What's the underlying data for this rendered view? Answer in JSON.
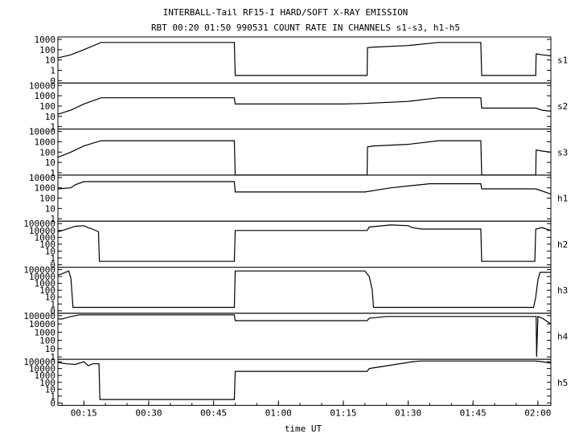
{
  "chart_data": {
    "type": "line",
    "title": "INTERBALL-Tail RF15-I HARD/SOFT X-RAY EMISSION",
    "subtitle": "RBT 00:20 01:50 990531  COUNT RATE IN CHANNELS s1-s3, h1-h5",
    "xlabel": "time UT",
    "x_range_min": [
      9,
      123
    ],
    "x_ticks": [
      {
        "min": 15,
        "label": "00:15"
      },
      {
        "min": 30,
        "label": "00:30"
      },
      {
        "min": 45,
        "label": "00:45"
      },
      {
        "min": 60,
        "label": "01:00"
      },
      {
        "min": 75,
        "label": "01:15"
      },
      {
        "min": 90,
        "label": "01:30"
      },
      {
        "min": 105,
        "label": "01:45"
      },
      {
        "min": 120,
        "label": "02:00"
      }
    ],
    "y_scale": "log",
    "panels": [
      {
        "name": "s1",
        "ymax_exp": 3,
        "ticks": [
          "0",
          "1",
          "10",
          "100",
          "1000"
        ],
        "series": [
          [
            9,
            1.2
          ],
          [
            12,
            1.5
          ],
          [
            15,
            2.0
          ],
          [
            19,
            2.7
          ],
          [
            19.3,
            2.7
          ],
          [
            49.8,
            2.7
          ],
          [
            50,
            -0.5
          ],
          [
            80.5,
            -0.5
          ],
          [
            80.6,
            2.2
          ],
          [
            82,
            2.25
          ],
          [
            90,
            2.4
          ],
          [
            97,
            2.7
          ],
          [
            106.8,
            2.7
          ],
          [
            107,
            -0.5
          ],
          [
            119.5,
            -0.5
          ],
          [
            119.6,
            1.6
          ],
          [
            121,
            1.5
          ],
          [
            123,
            1.4
          ]
        ]
      },
      {
        "name": "s2",
        "ymax_exp": 4,
        "ticks": [
          "1",
          "10",
          "100",
          "1000",
          "10000"
        ],
        "series": [
          [
            9,
            1.2
          ],
          [
            12,
            1.6
          ],
          [
            15,
            2.2
          ],
          [
            19,
            2.8
          ],
          [
            19.3,
            2.8
          ],
          [
            49.8,
            2.8
          ],
          [
            50,
            2.2
          ],
          [
            75,
            2.2
          ],
          [
            80,
            2.25
          ],
          [
            90,
            2.45
          ],
          [
            97,
            2.8
          ],
          [
            106.8,
            2.8
          ],
          [
            107,
            1.8
          ],
          [
            119.5,
            1.8
          ],
          [
            121,
            1.6
          ],
          [
            123,
            1.5
          ]
        ]
      },
      {
        "name": "s3",
        "ymax_exp": 4,
        "ticks": [
          "1",
          "10",
          "100",
          "1000",
          "10000"
        ],
        "series": [
          [
            9,
            1.5
          ],
          [
            12,
            2.0
          ],
          [
            15,
            2.6
          ],
          [
            19,
            3.1
          ],
          [
            19.3,
            3.1
          ],
          [
            49.8,
            3.1
          ],
          [
            50,
            -0.5
          ],
          [
            80.5,
            -0.5
          ],
          [
            80.6,
            2.5
          ],
          [
            82,
            2.6
          ],
          [
            90,
            2.75
          ],
          [
            97,
            3.1
          ],
          [
            106.8,
            3.1
          ],
          [
            107,
            -0.5
          ],
          [
            119.5,
            -0.5
          ],
          [
            119.6,
            2.2
          ],
          [
            121,
            2.1
          ],
          [
            123,
            2.0
          ]
        ]
      },
      {
        "name": "h1",
        "ymax_exp": 4,
        "ticks": [
          "1",
          "10",
          "100",
          "1000",
          "10000"
        ],
        "series": [
          [
            9,
            2.9
          ],
          [
            12,
            3.0
          ],
          [
            13,
            3.3
          ],
          [
            15,
            3.6
          ],
          [
            19,
            3.6
          ],
          [
            49.8,
            3.6
          ],
          [
            50,
            2.6
          ],
          [
            80,
            2.6
          ],
          [
            86,
            3.0
          ],
          [
            95,
            3.4
          ],
          [
            106.8,
            3.4
          ],
          [
            107,
            2.9
          ],
          [
            119.5,
            2.9
          ],
          [
            123,
            2.4
          ]
        ]
      },
      {
        "name": "h2",
        "ymax_exp": 5,
        "ticks": [
          "0",
          "1",
          "10",
          "100",
          "1000",
          "10000",
          "100000"
        ],
        "series": [
          [
            9,
            3.8
          ],
          [
            10,
            4.0
          ],
          [
            13,
            4.6
          ],
          [
            15,
            4.7
          ],
          [
            16,
            4.4
          ],
          [
            17,
            4.2
          ],
          [
            18.4,
            3.8
          ],
          [
            18.6,
            -0.5
          ],
          [
            49.8,
            -0.5
          ],
          [
            50,
            4.0
          ],
          [
            80.5,
            4.0
          ],
          [
            81,
            4.5
          ],
          [
            86,
            4.8
          ],
          [
            90,
            4.7
          ],
          [
            91,
            4.4
          ],
          [
            93,
            4.2
          ],
          [
            94,
            4.2
          ],
          [
            106.8,
            4.2
          ],
          [
            107,
            -0.5
          ],
          [
            119.3,
            -0.5
          ],
          [
            119.5,
            4.2
          ],
          [
            121,
            4.4
          ],
          [
            123,
            4.0
          ]
        ]
      },
      {
        "name": "h3",
        "ymax_exp": 5,
        "ticks": [
          "0",
          "1",
          "10",
          "100",
          "1000",
          "10000",
          "100000"
        ],
        "series": [
          [
            9,
            4.2
          ],
          [
            10,
            4.4
          ],
          [
            11.5,
            4.8
          ],
          [
            12,
            3.8
          ],
          [
            12.5,
            -0.5
          ],
          [
            49.8,
            -0.5
          ],
          [
            50,
            4.8
          ],
          [
            80,
            4.8
          ],
          [
            81,
            4.0
          ],
          [
            81.7,
            2.0
          ],
          [
            82,
            -0.5
          ],
          [
            119,
            -0.5
          ],
          [
            119.5,
            1.0
          ],
          [
            120,
            3.5
          ],
          [
            120.5,
            4.6
          ],
          [
            123,
            4.6
          ]
        ]
      },
      {
        "name": "h4",
        "ymax_exp": 5,
        "ticks": [
          "1",
          "10",
          "100",
          "1000",
          "10000",
          "100000"
        ],
        "series": [
          [
            9,
            4.6
          ],
          [
            10,
            4.6
          ],
          [
            12,
            4.9
          ],
          [
            14,
            5.1
          ],
          [
            16,
            5.1
          ],
          [
            49.8,
            5.1
          ],
          [
            50,
            4.4
          ],
          [
            80.5,
            4.4
          ],
          [
            81,
            4.7
          ],
          [
            85,
            4.9
          ],
          [
            94,
            4.9
          ],
          [
            106.8,
            4.9
          ],
          [
            107,
            4.9
          ],
          [
            117,
            4.9
          ],
          [
            119.6,
            4.9
          ],
          [
            119.7,
            0.0
          ],
          [
            120,
            4.9
          ],
          [
            121,
            4.7
          ],
          [
            123,
            4.0
          ]
        ]
      },
      {
        "name": "h5",
        "ymax_exp": 5,
        "ticks": [
          "0",
          "1",
          "10",
          "100",
          "1000",
          "10000",
          "100000"
        ],
        "series": [
          [
            9,
            4.9
          ],
          [
            11,
            4.7
          ],
          [
            13,
            4.6
          ],
          [
            15,
            5.0
          ],
          [
            16,
            4.4
          ],
          [
            17,
            4.7
          ],
          [
            18.5,
            4.7
          ],
          [
            18.7,
            -0.5
          ],
          [
            49.8,
            -0.5
          ],
          [
            50,
            3.6
          ],
          [
            80.5,
            3.6
          ],
          [
            81,
            4.0
          ],
          [
            86,
            4.5
          ],
          [
            91,
            5.0
          ],
          [
            93,
            5.1
          ],
          [
            106.8,
            5.1
          ],
          [
            107,
            5.1
          ],
          [
            119.5,
            5.1
          ],
          [
            121,
            5.0
          ],
          [
            123,
            4.8
          ]
        ]
      }
    ]
  }
}
